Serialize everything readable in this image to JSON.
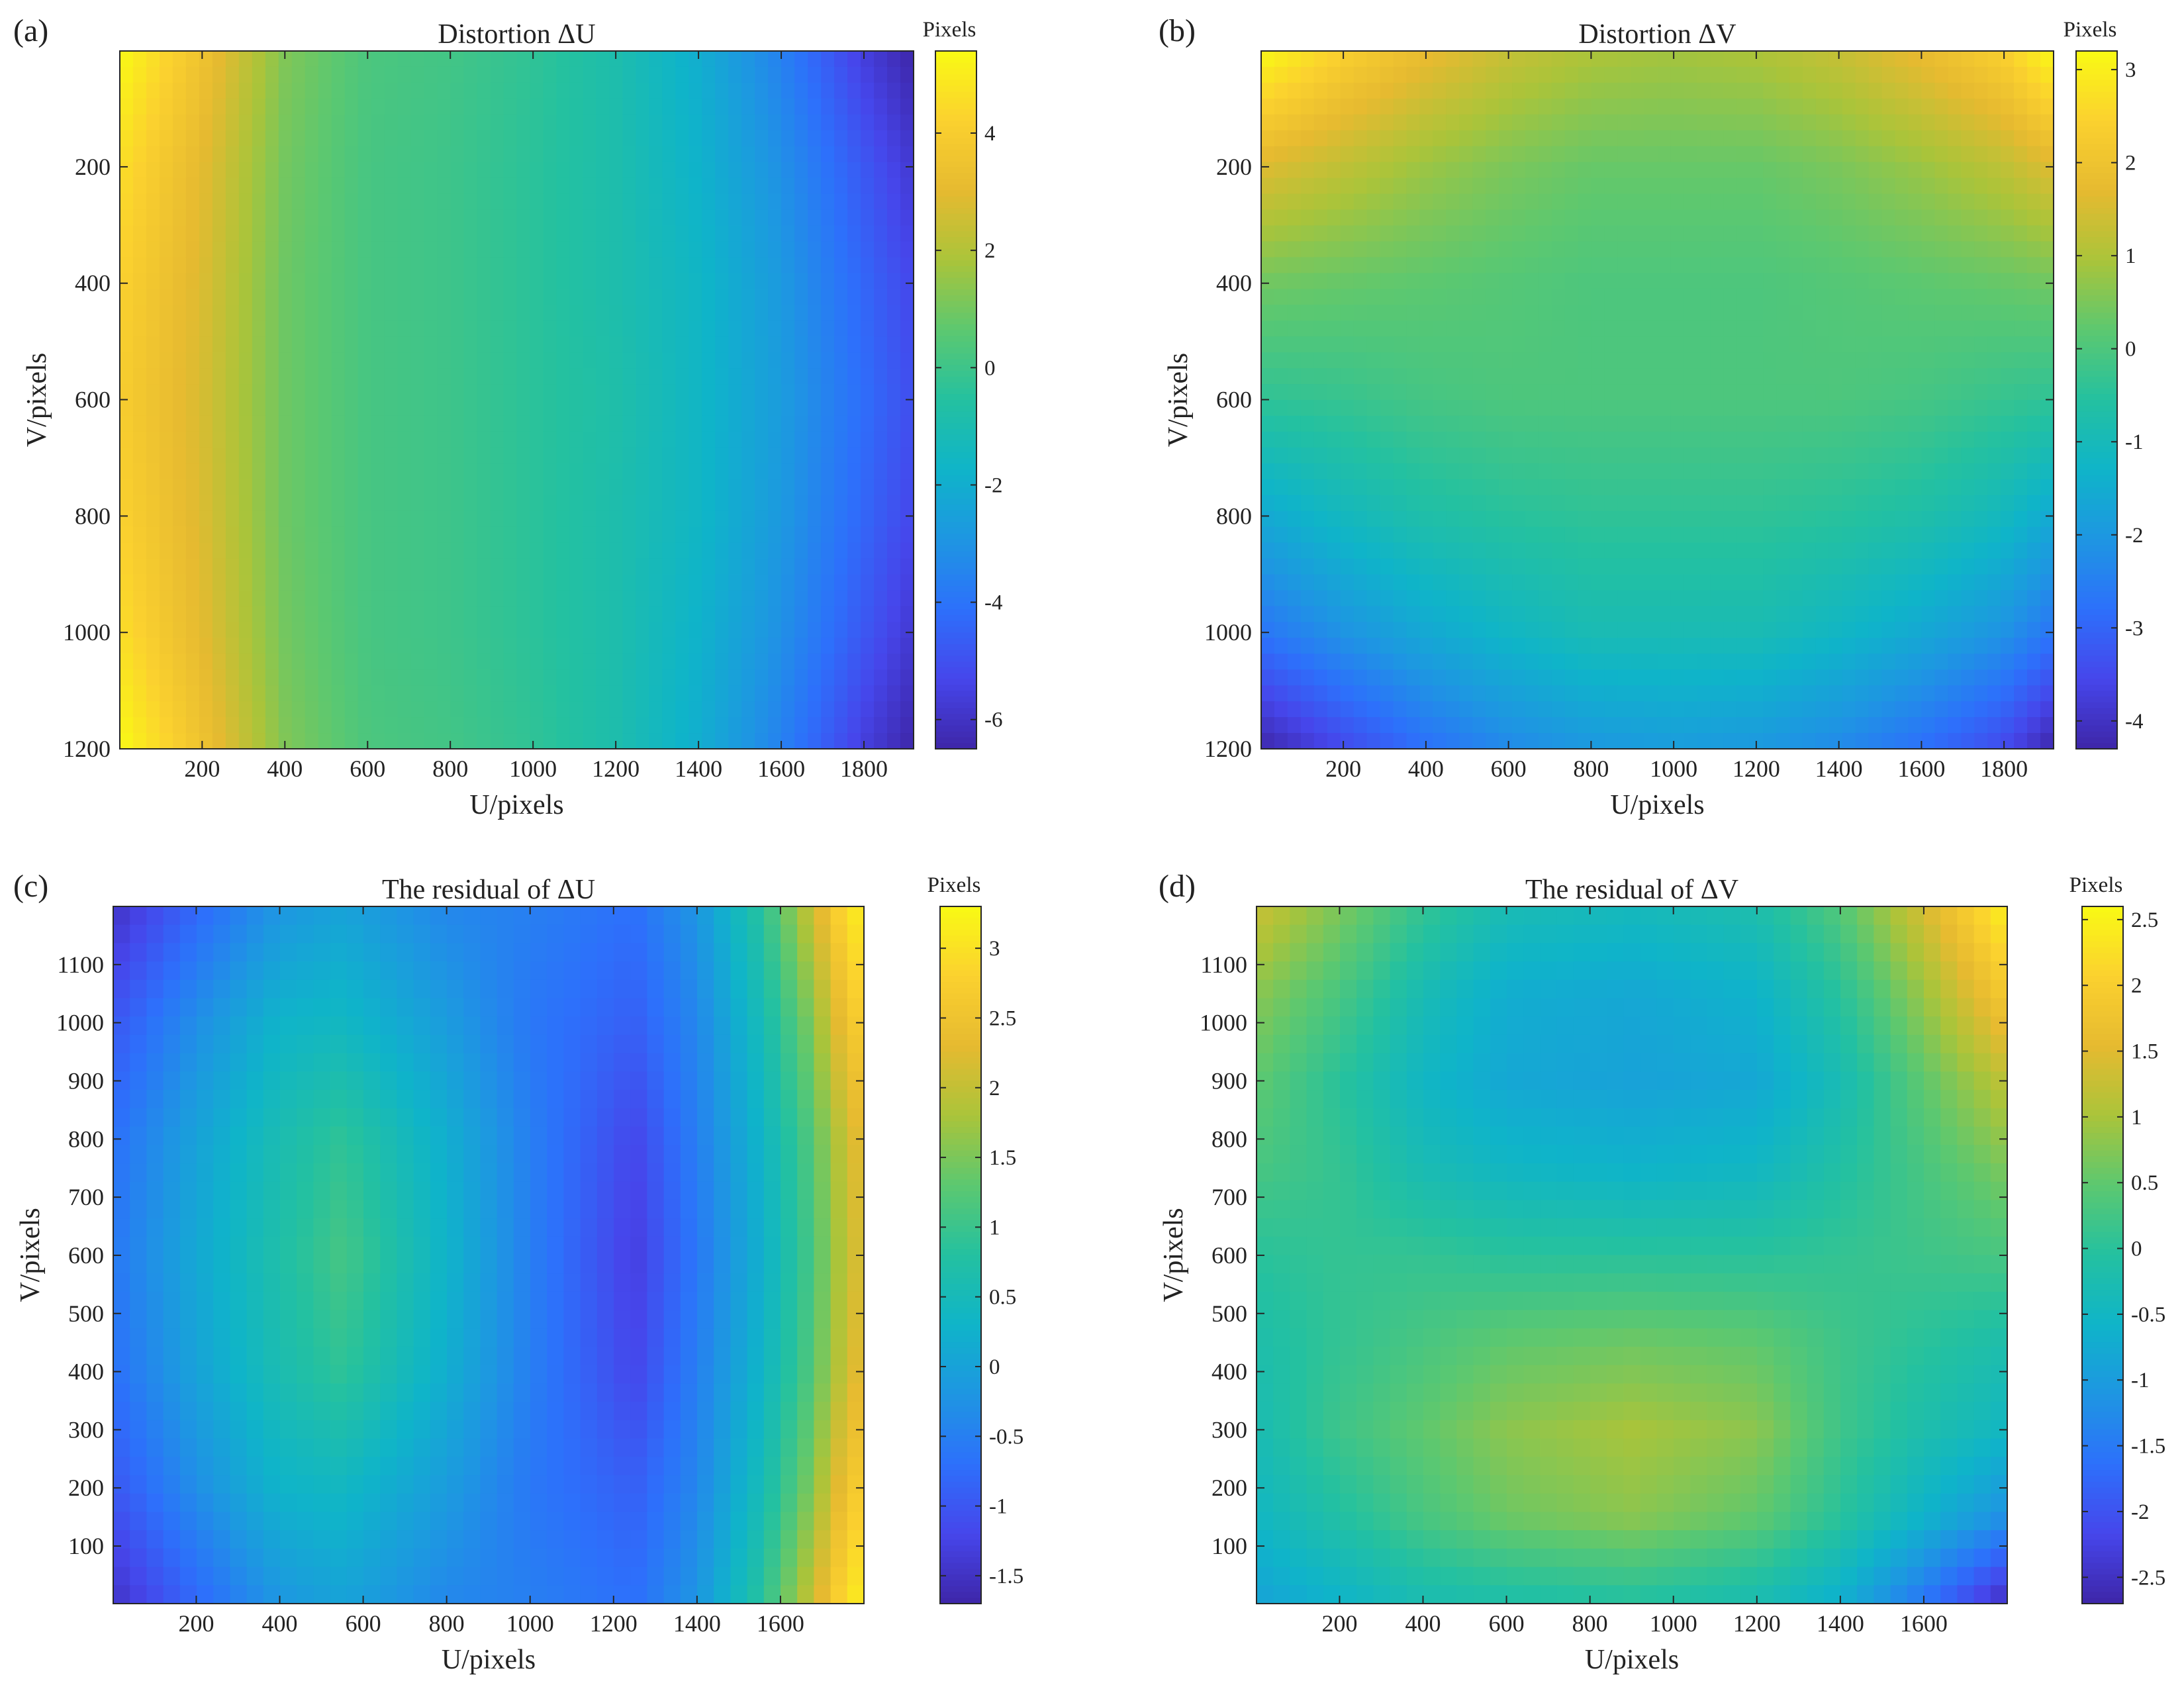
{
  "chart_data": [
    {
      "type": "heatmap",
      "panel_label": "(a)",
      "title": "Distortion ΔU",
      "xlabel": "U/pixels",
      "ylabel": "V/pixels",
      "x_range": [
        1,
        1920
      ],
      "y_range": [
        1,
        1200
      ],
      "y_direction": "down",
      "x_ticks": [
        200,
        400,
        600,
        800,
        1000,
        1200,
        1400,
        1600,
        1800
      ],
      "x_tick_labels": [
        "200",
        "400",
        "600",
        "800",
        "1000",
        "1200",
        "1400",
        "1600",
        "1800"
      ],
      "y_ticks": [
        200,
        400,
        600,
        800,
        1000,
        1200
      ],
      "y_tick_labels": [
        "200",
        "400",
        "600",
        "800",
        "1000",
        "1200"
      ],
      "colorbar": {
        "label": "Pixels",
        "range": [
          -6.5,
          5.4
        ],
        "ticks": [
          4,
          2,
          0,
          -2,
          -4,
          -6
        ],
        "tick_labels": [
          "4",
          "2",
          "0",
          "-2",
          "-4",
          "-6"
        ]
      },
      "field": {
        "x_samples": [
          0,
          200,
          400,
          600,
          800,
          1000,
          1200,
          1400,
          1600,
          1800,
          1920
        ],
        "y_samples": [
          0,
          200,
          400,
          600,
          800,
          1000,
          1200
        ],
        "values": [
          [
            5.4,
            3.5,
            1.2,
            0.3,
            0.1,
            -0.3,
            -0.9,
            -2.0,
            -3.6,
            -5.6,
            -6.5
          ],
          [
            4.6,
            3.0,
            1.0,
            0.2,
            0.0,
            -0.4,
            -0.9,
            -1.8,
            -3.1,
            -4.8,
            -5.8
          ],
          [
            4.2,
            2.8,
            0.9,
            0.2,
            0.0,
            -0.4,
            -0.9,
            -1.6,
            -2.8,
            -4.4,
            -5.3
          ],
          [
            4.0,
            2.7,
            0.9,
            0.2,
            0.0,
            -0.4,
            -0.8,
            -1.6,
            -2.7,
            -4.2,
            -5.1
          ],
          [
            4.2,
            2.8,
            0.9,
            0.2,
            0.0,
            -0.4,
            -0.9,
            -1.6,
            -2.8,
            -4.4,
            -5.3
          ],
          [
            4.6,
            3.0,
            1.0,
            0.2,
            0.0,
            -0.4,
            -0.9,
            -1.8,
            -3.1,
            -4.8,
            -5.8
          ],
          [
            5.4,
            3.5,
            1.2,
            0.3,
            0.1,
            -0.3,
            -0.9,
            -2.0,
            -3.6,
            -5.6,
            -6.5
          ]
        ]
      }
    },
    {
      "type": "heatmap",
      "panel_label": "(b)",
      "title": "Distortion ΔV",
      "xlabel": "U/pixels",
      "ylabel": "V/pixels",
      "x_range": [
        1,
        1920
      ],
      "y_range": [
        1,
        1200
      ],
      "y_direction": "down",
      "x_ticks": [
        200,
        400,
        600,
        800,
        1000,
        1200,
        1400,
        1600,
        1800
      ],
      "x_tick_labels": [
        "200",
        "400",
        "600",
        "800",
        "1000",
        "1200",
        "1400",
        "1600",
        "1800"
      ],
      "y_ticks": [
        200,
        400,
        600,
        800,
        1000,
        1200
      ],
      "y_tick_labels": [
        "200",
        "400",
        "600",
        "800",
        "1000",
        "1200"
      ],
      "colorbar": {
        "label": "Pixels",
        "range": [
          -4.3,
          3.2
        ],
        "ticks": [
          3,
          2,
          1,
          0,
          -1,
          -2,
          -3,
          -4
        ],
        "tick_labels": [
          "3",
          "2",
          "1",
          "0",
          "-1",
          "-2",
          "-3",
          "-4"
        ]
      },
      "field": {
        "x_samples": [
          0,
          200,
          400,
          600,
          800,
          1000,
          1200,
          1400,
          1600,
          1800,
          1920
        ],
        "y_samples": [
          0,
          200,
          400,
          600,
          800,
          1000,
          1200
        ],
        "values": [
          [
            3.2,
            2.4,
            1.8,
            1.3,
            1.0,
            0.9,
            1.0,
            1.3,
            1.8,
            2.4,
            3.2
          ],
          [
            1.6,
            1.2,
            0.8,
            0.5,
            0.3,
            0.3,
            0.3,
            0.5,
            0.8,
            1.2,
            1.6
          ],
          [
            0.4,
            0.3,
            0.2,
            0.1,
            0.0,
            0.0,
            0.0,
            0.1,
            0.2,
            0.3,
            0.4
          ],
          [
            -0.4,
            -0.3,
            -0.1,
            0.0,
            0.0,
            0.0,
            0.0,
            0.0,
            -0.1,
            -0.3,
            -0.4
          ],
          [
            -1.6,
            -1.1,
            -0.7,
            -0.5,
            -0.4,
            -0.4,
            -0.4,
            -0.5,
            -0.7,
            -1.1,
            -1.6
          ],
          [
            -2.7,
            -2.1,
            -1.6,
            -1.2,
            -0.9,
            -0.9,
            -0.9,
            -1.2,
            -1.6,
            -2.1,
            -2.7
          ],
          [
            -4.3,
            -3.5,
            -2.8,
            -2.3,
            -2.0,
            -1.9,
            -2.0,
            -2.3,
            -2.8,
            -3.5,
            -4.3
          ]
        ]
      }
    },
    {
      "type": "heatmap",
      "panel_label": "(c)",
      "title": "The residual of ΔU",
      "xlabel": "U/pixels",
      "ylabel": "V/pixels",
      "x_range": [
        1,
        1800
      ],
      "y_range": [
        1,
        1200
      ],
      "y_direction": "up",
      "x_ticks": [
        200,
        400,
        600,
        800,
        1000,
        1200,
        1400,
        1600
      ],
      "x_tick_labels": [
        "200",
        "400",
        "600",
        "800",
        "1000",
        "1200",
        "1400",
        "1600"
      ],
      "y_ticks": [
        100,
        200,
        300,
        400,
        500,
        600,
        700,
        800,
        900,
        1000,
        1100
      ],
      "y_tick_labels": [
        "100",
        "200",
        "300",
        "400",
        "500",
        "600",
        "700",
        "800",
        "900",
        "1000",
        "1100"
      ],
      "colorbar": {
        "label": "Pixels",
        "range": [
          -1.7,
          3.3
        ],
        "ticks": [
          3,
          2.5,
          2,
          1.5,
          1,
          0.5,
          0,
          -0.5,
          -1,
          -1.5
        ],
        "tick_labels": [
          "3",
          "2.5",
          "2",
          "1.5",
          "1",
          "0.5",
          "0",
          "-0.5",
          "-1",
          "-1.5"
        ]
      },
      "field": {
        "x_samples": [
          0,
          200,
          400,
          550,
          800,
          1000,
          1250,
          1400,
          1550,
          1650,
          1750,
          1800
        ],
        "y_samples": [
          0,
          200,
          400,
          600,
          800,
          1000,
          1200
        ],
        "values": [
          [
            -1.5,
            -0.8,
            -0.2,
            0.0,
            -0.4,
            -0.5,
            -0.7,
            -0.2,
            0.8,
            1.8,
            2.9,
            3.2
          ],
          [
            -1.0,
            -0.3,
            0.3,
            0.4,
            -0.1,
            -0.6,
            -0.9,
            -0.4,
            0.5,
            1.3,
            2.4,
            2.8
          ],
          [
            -0.7,
            0.0,
            0.6,
            0.9,
            0.2,
            -0.5,
            -1.2,
            -0.5,
            0.3,
            1.0,
            2.0,
            2.4
          ],
          [
            -0.6,
            0.1,
            0.7,
            1.1,
            0.3,
            -0.5,
            -1.3,
            -0.6,
            0.2,
            0.9,
            1.9,
            2.3
          ],
          [
            -0.7,
            0.0,
            0.6,
            0.9,
            0.2,
            -0.5,
            -1.2,
            -0.5,
            0.3,
            1.0,
            2.0,
            2.4
          ],
          [
            -1.0,
            -0.3,
            0.3,
            0.4,
            -0.1,
            -0.6,
            -0.9,
            -0.4,
            0.5,
            1.3,
            2.4,
            2.8
          ],
          [
            -1.5,
            -0.8,
            -0.2,
            0.0,
            -0.4,
            -0.5,
            -0.7,
            -0.2,
            0.8,
            1.8,
            2.9,
            3.2
          ]
        ]
      }
    },
    {
      "type": "heatmap",
      "panel_label": "(d)",
      "title": "The residual of ΔV",
      "xlabel": "U/pixels",
      "ylabel": "V/pixels",
      "x_range": [
        1,
        1800
      ],
      "y_range": [
        1,
        1200
      ],
      "y_direction": "up",
      "x_ticks": [
        200,
        400,
        600,
        800,
        1000,
        1200,
        1400,
        1600
      ],
      "x_tick_labels": [
        "200",
        "400",
        "600",
        "800",
        "1000",
        "1200",
        "1400",
        "1600"
      ],
      "y_ticks": [
        100,
        200,
        300,
        400,
        500,
        600,
        700,
        800,
        900,
        1000,
        1100
      ],
      "y_tick_labels": [
        "100",
        "200",
        "300",
        "400",
        "500",
        "600",
        "700",
        "800",
        "900",
        "1000",
        "1100"
      ],
      "colorbar": {
        "label": "Pixels",
        "range": [
          -2.7,
          2.6
        ],
        "ticks": [
          2.5,
          2,
          1.5,
          1,
          0.5,
          0,
          -0.5,
          -1,
          -1.5,
          -2,
          -2.5
        ],
        "tick_labels": [
          "2.5",
          "2",
          "1.5",
          "1",
          "0.5",
          "0",
          "-0.5",
          "-1",
          "-1.5",
          "-2",
          "-2.5"
        ]
      },
      "field": {
        "x_samples": [
          0,
          200,
          400,
          600,
          900,
          1200,
          1400,
          1600,
          1800
        ],
        "y_samples": [
          0,
          150,
          300,
          450,
          600,
          750,
          900,
          1050,
          1200
        ],
        "values": [
          [
            -0.9,
            -0.6,
            -0.3,
            -0.2,
            -0.1,
            -0.3,
            -0.7,
            -1.6,
            -2.6
          ],
          [
            -0.5,
            -0.1,
            0.3,
            0.6,
            0.8,
            0.5,
            0.0,
            -0.6,
            -1.2
          ],
          [
            -0.3,
            0.2,
            0.5,
            0.8,
            1.0,
            0.8,
            0.2,
            -0.2,
            -0.5
          ],
          [
            -0.2,
            0.1,
            0.3,
            0.5,
            0.6,
            0.5,
            0.2,
            0.0,
            -0.2
          ],
          [
            0.0,
            0.1,
            0.1,
            0.0,
            0.0,
            0.0,
            0.1,
            0.2,
            0.3
          ],
          [
            0.3,
            0.1,
            -0.3,
            -0.5,
            -0.6,
            -0.5,
            -0.1,
            0.3,
            0.7
          ],
          [
            0.5,
            0.0,
            -0.5,
            -0.8,
            -0.9,
            -0.8,
            -0.3,
            0.5,
            1.2
          ],
          [
            0.8,
            0.3,
            -0.3,
            -0.7,
            -0.8,
            -0.6,
            0.0,
            0.9,
            1.9
          ],
          [
            1.3,
            0.7,
            0.1,
            -0.3,
            -0.4,
            -0.2,
            0.4,
            1.4,
            2.5
          ]
        ]
      }
    }
  ]
}
